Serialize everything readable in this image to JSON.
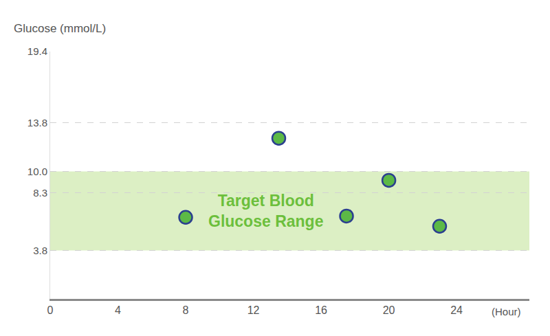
{
  "chart_data": {
    "type": "scatter",
    "y_label": "Glucose (mmol/L)",
    "x_label": "(Hour)",
    "x": [
      8,
      13.5,
      17.5,
      20,
      23
    ],
    "values": [
      6.4,
      12.6,
      6.5,
      9.3,
      5.7
    ],
    "color": "#5cb946",
    "marker": "circle",
    "target_range": [
      3.8,
      10.0
    ],
    "band_label": "Target Blood\nGlucose Range",
    "xlim": [
      0,
      28.3
    ],
    "xticks": [
      0,
      4,
      8,
      12,
      16,
      20,
      24
    ],
    "ylim": [
      0,
      19.4
    ],
    "yticks": [
      3.8,
      8.3,
      {
        "value": 10,
        "label": "10.0"
      },
      13.8,
      19.4
    ],
    "grid": true
  }
}
